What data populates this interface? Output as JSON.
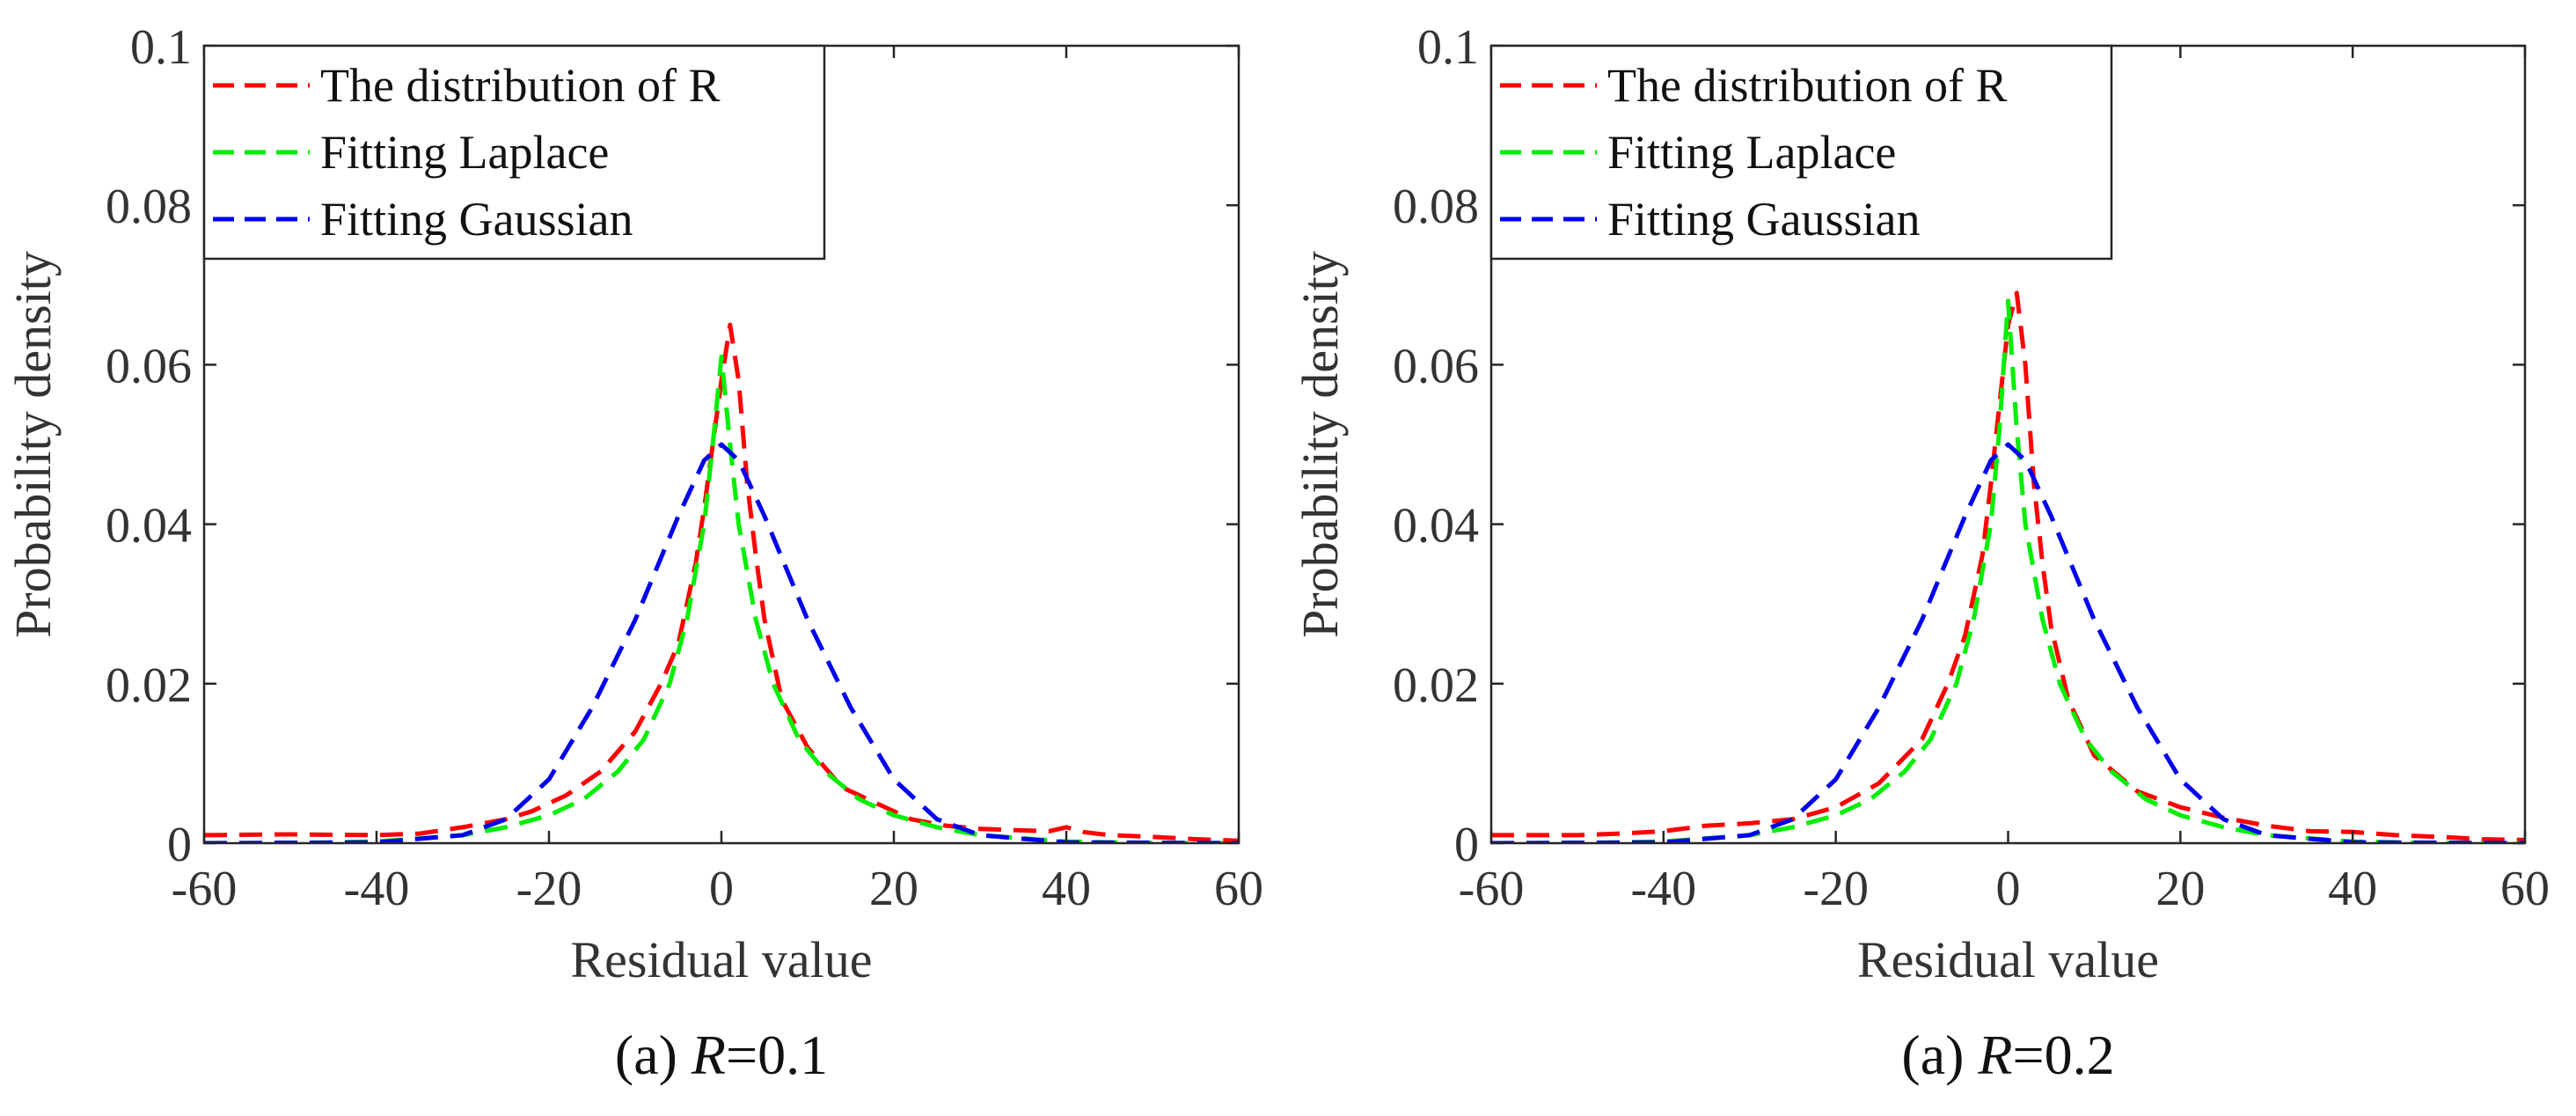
{
  "chart_data": [
    {
      "type": "line",
      "caption": {
        "prefix": "(a) ",
        "variable": "R",
        "suffix": "=0.1"
      },
      "xlabel": "Residual value",
      "ylabel": "Probability density",
      "xlim": [
        -60,
        60
      ],
      "ylim": [
        0,
        0.1
      ],
      "xticks": [
        "-60",
        "-40",
        "-20",
        "0",
        "20",
        "40",
        "60"
      ],
      "yticks": [
        "0",
        "0.02",
        "0.04",
        "0.06",
        "0.08",
        "0.1"
      ],
      "legend_position": "top-left",
      "series": [
        {
          "name": "The distribution of R",
          "color": "#ff0000",
          "style": "dashed",
          "x": [
            -60,
            -50,
            -40,
            -35,
            -30,
            -25,
            -22,
            -18,
            -14,
            -10,
            -7,
            -5,
            -3,
            -2,
            -1,
            0,
            1,
            2,
            3,
            4,
            5,
            7,
            10,
            14,
            18,
            22,
            26,
            30,
            35,
            38,
            40,
            42,
            45,
            50,
            55,
            60
          ],
          "y": [
            0.001,
            0.0011,
            0.001,
            0.0012,
            0.002,
            0.003,
            0.004,
            0.006,
            0.009,
            0.014,
            0.02,
            0.025,
            0.035,
            0.042,
            0.05,
            0.058,
            0.065,
            0.058,
            0.045,
            0.036,
            0.028,
            0.018,
            0.012,
            0.007,
            0.005,
            0.003,
            0.0022,
            0.0018,
            0.0016,
            0.0015,
            0.002,
            0.0014,
            0.001,
            0.0008,
            0.0005,
            0.0003
          ]
        },
        {
          "name": "Fitting Laplace",
          "color": "#00ee00",
          "style": "dashed",
          "x": [
            -60,
            -50,
            -40,
            -30,
            -25,
            -20,
            -16,
            -12,
            -9,
            -6,
            -4,
            -2,
            -1,
            0,
            1,
            2,
            4,
            6,
            9,
            12,
            16,
            20,
            25,
            30,
            40,
            50,
            60
          ],
          "y": [
            0,
            0,
            0.0002,
            0.001,
            0.002,
            0.0035,
            0.0055,
            0.009,
            0.013,
            0.02,
            0.028,
            0.04,
            0.05,
            0.061,
            0.05,
            0.04,
            0.028,
            0.02,
            0.013,
            0.009,
            0.0055,
            0.0035,
            0.002,
            0.001,
            0.0002,
            0,
            0
          ]
        },
        {
          "name": "Fitting Gaussian",
          "color": "#0000ee",
          "style": "dashed",
          "x": [
            -60,
            -40,
            -30,
            -25,
            -20,
            -15,
            -10,
            -5,
            -2,
            0,
            2,
            5,
            10,
            15,
            20,
            25,
            30,
            40,
            60
          ],
          "y": [
            0,
            0.0001,
            0.001,
            0.003,
            0.008,
            0.017,
            0.028,
            0.041,
            0.048,
            0.05,
            0.048,
            0.041,
            0.028,
            0.017,
            0.008,
            0.003,
            0.001,
            0.0001,
            0
          ]
        }
      ]
    },
    {
      "type": "line",
      "caption": {
        "prefix": "(a) ",
        "variable": "R",
        "suffix": "=0.2"
      },
      "xlabel": "Residual value",
      "ylabel": "Probability density",
      "xlim": [
        -60,
        60
      ],
      "ylim": [
        0,
        0.1
      ],
      "xticks": [
        "-60",
        "-40",
        "-20",
        "0",
        "20",
        "40",
        "60"
      ],
      "yticks": [
        "0",
        "0.02",
        "0.04",
        "0.06",
        "0.08",
        "0.1"
      ],
      "legend_position": "top-left",
      "series": [
        {
          "name": "The distribution of R",
          "color": "#ff0000",
          "style": "dashed",
          "x": [
            -60,
            -50,
            -45,
            -40,
            -35,
            -30,
            -25,
            -20,
            -15,
            -10,
            -7,
            -5,
            -3,
            -2,
            -1,
            0,
            1,
            2,
            3,
            4,
            5,
            7,
            10,
            15,
            20,
            25,
            30,
            35,
            40,
            45,
            50,
            55,
            60
          ],
          "y": [
            0.001,
            0.001,
            0.0012,
            0.0015,
            0.0022,
            0.0025,
            0.003,
            0.0045,
            0.0075,
            0.013,
            0.02,
            0.026,
            0.036,
            0.045,
            0.055,
            0.065,
            0.069,
            0.06,
            0.045,
            0.035,
            0.027,
            0.018,
            0.011,
            0.0065,
            0.0045,
            0.0032,
            0.0022,
            0.0015,
            0.0014,
            0.001,
            0.0008,
            0.0005,
            0.0004
          ]
        },
        {
          "name": "Fitting Laplace",
          "color": "#00ee00",
          "style": "dashed",
          "x": [
            -60,
            -50,
            -40,
            -30,
            -25,
            -20,
            -16,
            -12,
            -9,
            -6,
            -4,
            -2,
            -1,
            0,
            1,
            2,
            4,
            6,
            9,
            12,
            16,
            20,
            25,
            30,
            40,
            50,
            60
          ],
          "y": [
            0,
            0,
            0.0002,
            0.001,
            0.002,
            0.0035,
            0.0055,
            0.009,
            0.013,
            0.02,
            0.028,
            0.04,
            0.052,
            0.068,
            0.052,
            0.04,
            0.028,
            0.02,
            0.013,
            0.009,
            0.0055,
            0.0035,
            0.002,
            0.001,
            0.0002,
            0,
            0
          ]
        },
        {
          "name": "Fitting Gaussian",
          "color": "#0000ee",
          "style": "dashed",
          "x": [
            -60,
            -40,
            -30,
            -25,
            -20,
            -15,
            -10,
            -5,
            -2,
            0,
            2,
            5,
            10,
            15,
            20,
            25,
            30,
            40,
            60
          ],
          "y": [
            0,
            0.0001,
            0.001,
            0.003,
            0.008,
            0.017,
            0.028,
            0.041,
            0.048,
            0.05,
            0.048,
            0.041,
            0.028,
            0.017,
            0.008,
            0.003,
            0.001,
            0.0001,
            0
          ]
        }
      ]
    }
  ]
}
